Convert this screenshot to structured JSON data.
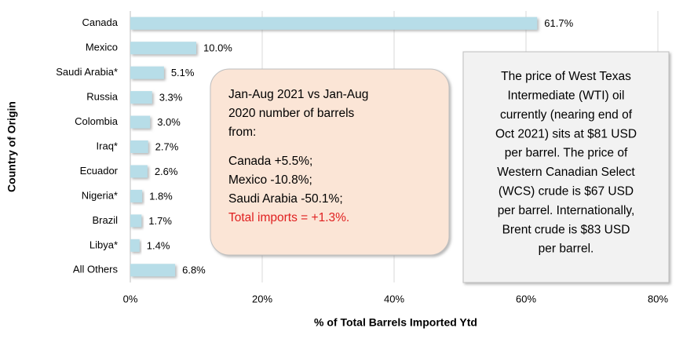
{
  "chart_data": {
    "type": "bar",
    "orientation": "horizontal",
    "x_label": "% of Total Barrels Imported Ytd",
    "y_label": "Country of Origin",
    "categories": [
      "Canada",
      "Mexico",
      "Saudi Arabia*",
      "Russia",
      "Colombia",
      "Iraq*",
      "Ecuador",
      "Nigeria*",
      "Brazil",
      "Libya*",
      "All Others"
    ],
    "values": [
      61.7,
      10.0,
      5.1,
      3.3,
      3.0,
      2.7,
      2.6,
      1.8,
      1.7,
      1.4,
      6.8
    ],
    "value_labels": [
      "61.7%",
      "10.0%",
      "5.1%",
      "3.3%",
      "3.0%",
      "2.7%",
      "2.6%",
      "1.8%",
      "1.7%",
      "1.4%",
      "6.8%"
    ],
    "color": "#b7dde8",
    "xlim": [
      0,
      80
    ],
    "xticks": [
      {
        "value": 0,
        "label": "0%"
      },
      {
        "value": 20,
        "label": "20%"
      },
      {
        "value": 40,
        "label": "40%"
      },
      {
        "value": 60,
        "label": "60%"
      },
      {
        "value": 80,
        "label": "80%"
      }
    ],
    "grid": true,
    "annotations": [
      {
        "lines": [
          "Jan-Aug 2021 vs Jan-Aug",
          "2020 number of barrels",
          "from:",
          "Canada +5.5%;",
          "Mexico -10.8%;",
          "Saudi Arabia -50.1%;",
          "Total imports = +1.3%."
        ]
      },
      {
        "lines": [
          "The price of West Texas",
          "Intermediate (WTI) oil",
          "currently (nearing end of",
          "Oct 2021) sits at $81 USD",
          "per barrel. The price of",
          "Western Canadian Select",
          "(WCS) crude is $67 USD",
          "per barrel. Internationally,",
          "Brent crude is $83 USD",
          "per barrel."
        ]
      }
    ]
  }
}
